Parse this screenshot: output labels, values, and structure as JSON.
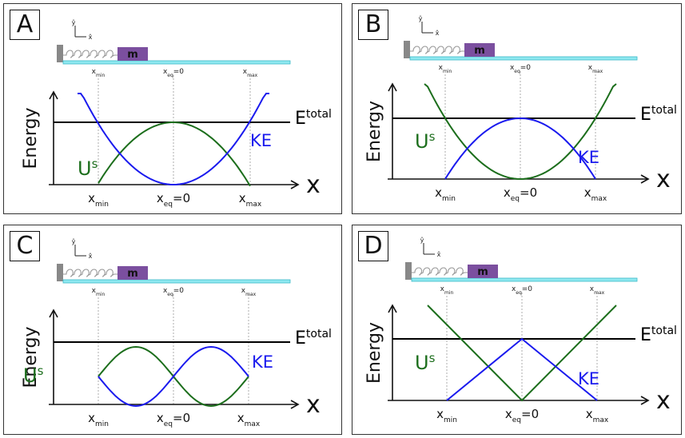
{
  "panels": [
    {
      "label": "A",
      "variant": "parabola-us-green-up"
    },
    {
      "label": "B",
      "variant": "parabola-us-green-up"
    },
    {
      "label": "C",
      "variant": "sine-like"
    },
    {
      "label": "D",
      "variant": "linear-v"
    }
  ],
  "apparatus": {
    "mass_label": "m",
    "axis_up_label": "ŷ",
    "axis_right_label": "x̂",
    "track_tick_labels": [
      "x_min",
      "x_eq=0",
      "x_max"
    ]
  },
  "graph": {
    "y_axis_label": "Energy",
    "x_axis_label": "x",
    "total_label_base": "E",
    "total_label_sup": "total",
    "us_label_base": "U",
    "us_label_sup": "s",
    "ke_label": "KE",
    "tick_labels": [
      {
        "base": "x",
        "sub": "min"
      },
      {
        "base": "x",
        "sub": "eq",
        "tail": "=0"
      },
      {
        "base": "x",
        "sub": "max"
      }
    ]
  },
  "colors": {
    "us": "#1c6e1c",
    "ke": "#1a1aee",
    "total": "#000000",
    "track": "#8fe8f0",
    "mass": "#7b4f9f",
    "wall": "#888888",
    "spring": "#999999"
  }
}
